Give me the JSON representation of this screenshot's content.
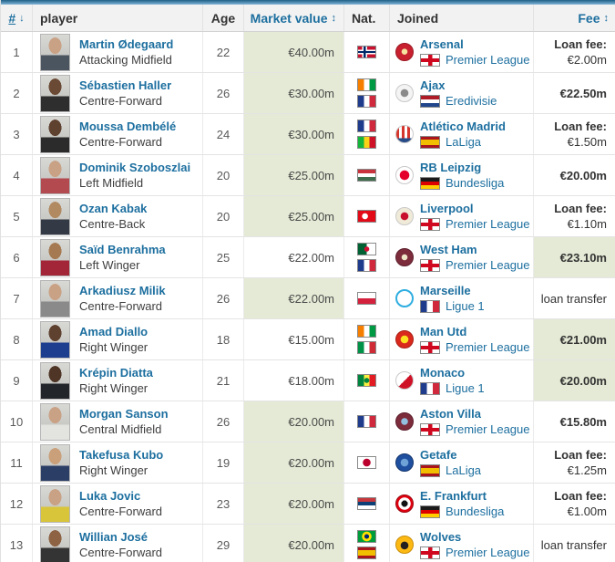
{
  "colors": {
    "accent_blue": "#1d6f9f",
    "highlight_green": "#e4ead5",
    "header_bg": "#f2f2f2",
    "topbar_blue": "#1f5f87"
  },
  "icons": {
    "sort_down_icon": "↓",
    "sort_updown_icon": "↕"
  },
  "table": {
    "headers": {
      "rank": "#",
      "player": "player",
      "age": "Age",
      "market_value": "Market value",
      "nat": "Nat.",
      "joined": "Joined",
      "fee": "Fee"
    },
    "rows": [
      {
        "rank": "1",
        "name": "Martin Ødegaard",
        "position": "Attacking Midfield",
        "age": "22",
        "market_value": "€40.00m",
        "mv_highlight": true,
        "nationalities": [
          "norway"
        ],
        "club": "Arsenal",
        "club_crest": "arsenal",
        "league": "Premier League",
        "league_flag": "england",
        "fee": {
          "type": "loan",
          "lines": [
            "Loan fee:",
            "€2.00m"
          ],
          "highlight": false
        },
        "photo": {
          "skin": "#c9a286",
          "shirt": "#4b5560"
        }
      },
      {
        "rank": "2",
        "name": "Sébastien Haller",
        "position": "Centre-Forward",
        "age": "26",
        "market_value": "€30.00m",
        "mv_highlight": true,
        "nationalities": [
          "ivory-coast",
          "france"
        ],
        "club": "Ajax",
        "club_crest": "ajax",
        "league": "Eredivisie",
        "league_flag": "netherlands",
        "fee": {
          "type": "amount",
          "lines": [
            "€22.50m"
          ],
          "highlight": false
        },
        "photo": {
          "skin": "#6b4a35",
          "shirt": "#2e2e2e"
        }
      },
      {
        "rank": "3",
        "name": "Moussa Dembélé",
        "position": "Centre-Forward",
        "age": "24",
        "market_value": "€30.00m",
        "mv_highlight": true,
        "nationalities": [
          "france",
          "mali"
        ],
        "club": "Atlético Madrid",
        "club_crest": "atletico",
        "league": "LaLiga",
        "league_flag": "spain",
        "fee": {
          "type": "loan",
          "lines": [
            "Loan fee:",
            "€1.50m"
          ],
          "highlight": false
        },
        "photo": {
          "skin": "#5f4130",
          "shirt": "#2b2b2b"
        }
      },
      {
        "rank": "4",
        "name": "Dominik Szoboszlai",
        "position": "Left Midfield",
        "age": "20",
        "market_value": "€25.00m",
        "mv_highlight": true,
        "nationalities": [
          "hungary"
        ],
        "club": "RB Leipzig",
        "club_crest": "rb-leipzig",
        "league": "Bundesliga",
        "league_flag": "germany",
        "fee": {
          "type": "amount",
          "lines": [
            "€20.00m"
          ],
          "highlight": false
        },
        "photo": {
          "skin": "#c9a286",
          "shirt": "#b24a50"
        }
      },
      {
        "rank": "5",
        "name": "Ozan Kabak",
        "position": "Centre-Back",
        "age": "20",
        "market_value": "€25.00m",
        "mv_highlight": true,
        "nationalities": [
          "turkey"
        ],
        "club": "Liverpool",
        "club_crest": "liverpool",
        "league": "Premier League",
        "league_flag": "england",
        "fee": {
          "type": "loan",
          "lines": [
            "Loan fee:",
            "€1.10m"
          ],
          "highlight": false
        },
        "photo": {
          "skin": "#b28a62",
          "shirt": "#333a45"
        }
      },
      {
        "rank": "6",
        "name": "Saïd Benrahma",
        "position": "Left Winger",
        "age": "25",
        "market_value": "€22.00m",
        "mv_highlight": false,
        "nationalities": [
          "algeria",
          "france"
        ],
        "club": "West Ham",
        "club_crest": "west-ham",
        "league": "Premier League",
        "league_flag": "england",
        "fee": {
          "type": "amount",
          "lines": [
            "€23.10m"
          ],
          "highlight": true
        },
        "photo": {
          "skin": "#a57a52",
          "shirt": "#a32638"
        }
      },
      {
        "rank": "7",
        "name": "Arkadiusz Milik",
        "position": "Centre-Forward",
        "age": "26",
        "market_value": "€22.00m",
        "mv_highlight": true,
        "nationalities": [
          "poland"
        ],
        "club": "Marseille",
        "club_crest": "marseille",
        "league": "Ligue 1",
        "league_flag": "france",
        "fee": {
          "type": "text",
          "lines": [
            "loan transfer"
          ],
          "highlight": false
        },
        "photo": {
          "skin": "#c9a286",
          "shirt": "#8a8a8a"
        }
      },
      {
        "rank": "8",
        "name": "Amad Diallo",
        "position": "Right Winger",
        "age": "18",
        "market_value": "€15.00m",
        "mv_highlight": false,
        "nationalities": [
          "ivory-coast",
          "italy"
        ],
        "club": "Man Utd",
        "club_crest": "man-utd",
        "league": "Premier League",
        "league_flag": "england",
        "fee": {
          "type": "amount",
          "lines": [
            "€21.00m"
          ],
          "highlight": true
        },
        "photo": {
          "skin": "#5f4130",
          "shirt": "#1d3e8f"
        }
      },
      {
        "rank": "9",
        "name": "Krépin Diatta",
        "position": "Right Winger",
        "age": "21",
        "market_value": "€18.00m",
        "mv_highlight": false,
        "nationalities": [
          "senegal"
        ],
        "club": "Monaco",
        "club_crest": "monaco",
        "league": "Ligue 1",
        "league_flag": "france",
        "fee": {
          "type": "amount",
          "lines": [
            "€20.00m"
          ],
          "highlight": true
        },
        "photo": {
          "skin": "#4f3526",
          "shirt": "#22252a"
        }
      },
      {
        "rank": "10",
        "name": "Morgan Sanson",
        "position": "Central Midfield",
        "age": "26",
        "market_value": "€20.00m",
        "mv_highlight": true,
        "nationalities": [
          "france"
        ],
        "club": "Aston Villa",
        "club_crest": "aston-villa",
        "league": "Premier League",
        "league_flag": "england",
        "fee": {
          "type": "amount",
          "lines": [
            "€15.80m"
          ],
          "highlight": false
        },
        "photo": {
          "skin": "#c9a286",
          "shirt": "#e3e3e0"
        }
      },
      {
        "rank": "11",
        "name": "Takefusa Kubo",
        "position": "Right Winger",
        "age": "19",
        "market_value": "€20.00m",
        "mv_highlight": true,
        "nationalities": [
          "japan"
        ],
        "club": "Getafe",
        "club_crest": "getafe",
        "league": "LaLiga",
        "league_flag": "spain",
        "fee": {
          "type": "loan",
          "lines": [
            "Loan fee:",
            "€1.25m"
          ],
          "highlight": false
        },
        "photo": {
          "skin": "#c9a07a",
          "shirt": "#2b3f66"
        }
      },
      {
        "rank": "12",
        "name": "Luka Jovic",
        "position": "Centre-Forward",
        "age": "23",
        "market_value": "€20.00m",
        "mv_highlight": true,
        "nationalities": [
          "serbia"
        ],
        "club": "E. Frankfurt",
        "club_crest": "e-frankfurt",
        "league": "Bundesliga",
        "league_flag": "germany",
        "fee": {
          "type": "loan",
          "lines": [
            "Loan fee:",
            "€1.00m"
          ],
          "highlight": false
        },
        "photo": {
          "skin": "#c9a286",
          "shirt": "#d9c53a"
        }
      },
      {
        "rank": "13",
        "name": "Willian José",
        "position": "Centre-Forward",
        "age": "29",
        "market_value": "€20.00m",
        "mv_highlight": true,
        "nationalities": [
          "brazil",
          "spain"
        ],
        "club": "Wolves",
        "club_crest": "wolves",
        "league": "Premier League",
        "league_flag": "england",
        "fee": {
          "type": "text",
          "lines": [
            "loan transfer"
          ],
          "highlight": false
        },
        "photo": {
          "skin": "#8d6344",
          "shirt": "#343434"
        }
      }
    ]
  }
}
